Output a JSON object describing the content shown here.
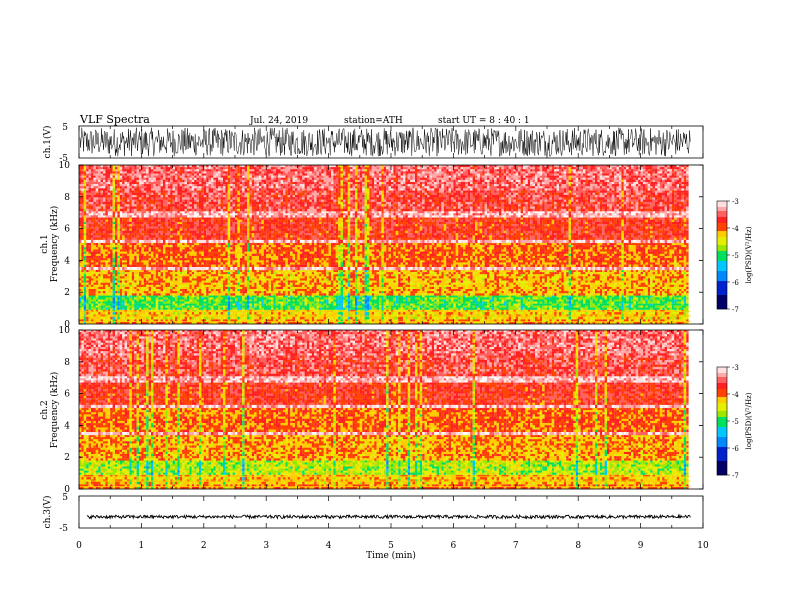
{
  "header": {
    "title": "VLF  Spectra",
    "date": "Jul.  24,  2019",
    "station": "station=ATH",
    "start_ut": "start  UT  =   8  : 40 : 1"
  },
  "colors": {
    "trace": "#000000",
    "spectrogram_scale": [
      "#000066",
      "#0044ff",
      "#00c0ff",
      "#00e060",
      "#c8ee00",
      "#ffd000",
      "#ff3000",
      "#ff6060",
      "#ffc8c8",
      "#ffffff"
    ]
  },
  "chart_data": [
    {
      "type": "line",
      "name": "ch1-waveform",
      "ylabel": "ch.1(V)",
      "yticks": [
        "5",
        "-5"
      ],
      "ylim": [
        -5,
        5
      ],
      "xlim": [
        0,
        10
      ],
      "x_end": 9.8,
      "amplitude_range_v": [
        -4.5,
        4.5
      ]
    },
    {
      "type": "heatmap",
      "name": "ch1-spectrogram",
      "ylabel": "ch.1\nFrequency  (kHz)",
      "yticks": [
        "0",
        "2",
        "4",
        "6",
        "8",
        "10"
      ],
      "ylim": [
        0,
        10
      ],
      "xlim": [
        0,
        10
      ],
      "x_end": 9.8,
      "colorbar": {
        "label": "log(PSD)(V²/Hz)",
        "ticks": [
          "-3",
          "-4",
          "-5",
          "-6",
          "-7"
        ],
        "range": [
          -7,
          -3
        ]
      },
      "bands": [
        {
          "f": [
            0.0,
            0.3
          ],
          "level": -4.1
        },
        {
          "f": [
            0.3,
            0.9
          ],
          "level": -4.3
        },
        {
          "f": [
            0.9,
            1.8
          ],
          "level": -4.85
        },
        {
          "f": [
            1.8,
            3.4
          ],
          "level": -4.15
        },
        {
          "f": [
            3.4,
            3.6
          ],
          "level": -3.2
        },
        {
          "f": [
            3.6,
            5.1
          ],
          "level": -3.95
        },
        {
          "f": [
            5.1,
            5.3
          ],
          "level": -3.2
        },
        {
          "f": [
            5.3,
            6.7
          ],
          "level": -3.75
        },
        {
          "f": [
            6.7,
            7.1
          ],
          "level": -3.2
        },
        {
          "f": [
            7.1,
            8.4
          ],
          "level": -3.6
        },
        {
          "f": [
            8.4,
            10.0
          ],
          "level": -3.45
        }
      ]
    },
    {
      "type": "heatmap",
      "name": "ch2-spectrogram",
      "ylabel": "ch.2\nFrequency  (kHz)",
      "yticks": [
        "0",
        "2",
        "4",
        "6",
        "8",
        "10"
      ],
      "ylim": [
        0,
        10
      ],
      "xlim": [
        0,
        10
      ],
      "x_end": 9.8,
      "colorbar": {
        "label": "log(PSD)(V²/Hz)",
        "ticks": [
          "-3",
          "-4",
          "-5",
          "-6",
          "-7"
        ],
        "range": [
          -7,
          -3
        ]
      },
      "bands": [
        {
          "f": [
            0.0,
            0.3
          ],
          "level": -4.0
        },
        {
          "f": [
            0.3,
            0.9
          ],
          "level": -4.2
        },
        {
          "f": [
            0.9,
            1.8
          ],
          "level": -4.6
        },
        {
          "f": [
            1.8,
            3.4
          ],
          "level": -4.1
        },
        {
          "f": [
            3.4,
            3.6
          ],
          "level": -3.2
        },
        {
          "f": [
            3.6,
            5.1
          ],
          "level": -3.95
        },
        {
          "f": [
            5.1,
            5.3
          ],
          "level": -3.2
        },
        {
          "f": [
            5.3,
            6.7
          ],
          "level": -3.75
        },
        {
          "f": [
            6.7,
            7.1
          ],
          "level": -3.2
        },
        {
          "f": [
            7.1,
            8.4
          ],
          "level": -3.6
        },
        {
          "f": [
            8.4,
            10.0
          ],
          "level": -3.45
        }
      ]
    },
    {
      "type": "line",
      "name": "ch3-waveform",
      "ylabel": "ch.3(V)",
      "yticks": [
        "5",
        "-5"
      ],
      "ylim": [
        -5,
        5
      ],
      "xlim": [
        0,
        10
      ],
      "x_end": 9.8,
      "level_v": -1.5,
      "amplitude_range_v": [
        -2.0,
        -1.0
      ],
      "xlabel": "Time  (min)",
      "xticks": [
        "0",
        "1",
        "2",
        "3",
        "4",
        "5",
        "6",
        "7",
        "8",
        "9",
        "10"
      ]
    }
  ]
}
